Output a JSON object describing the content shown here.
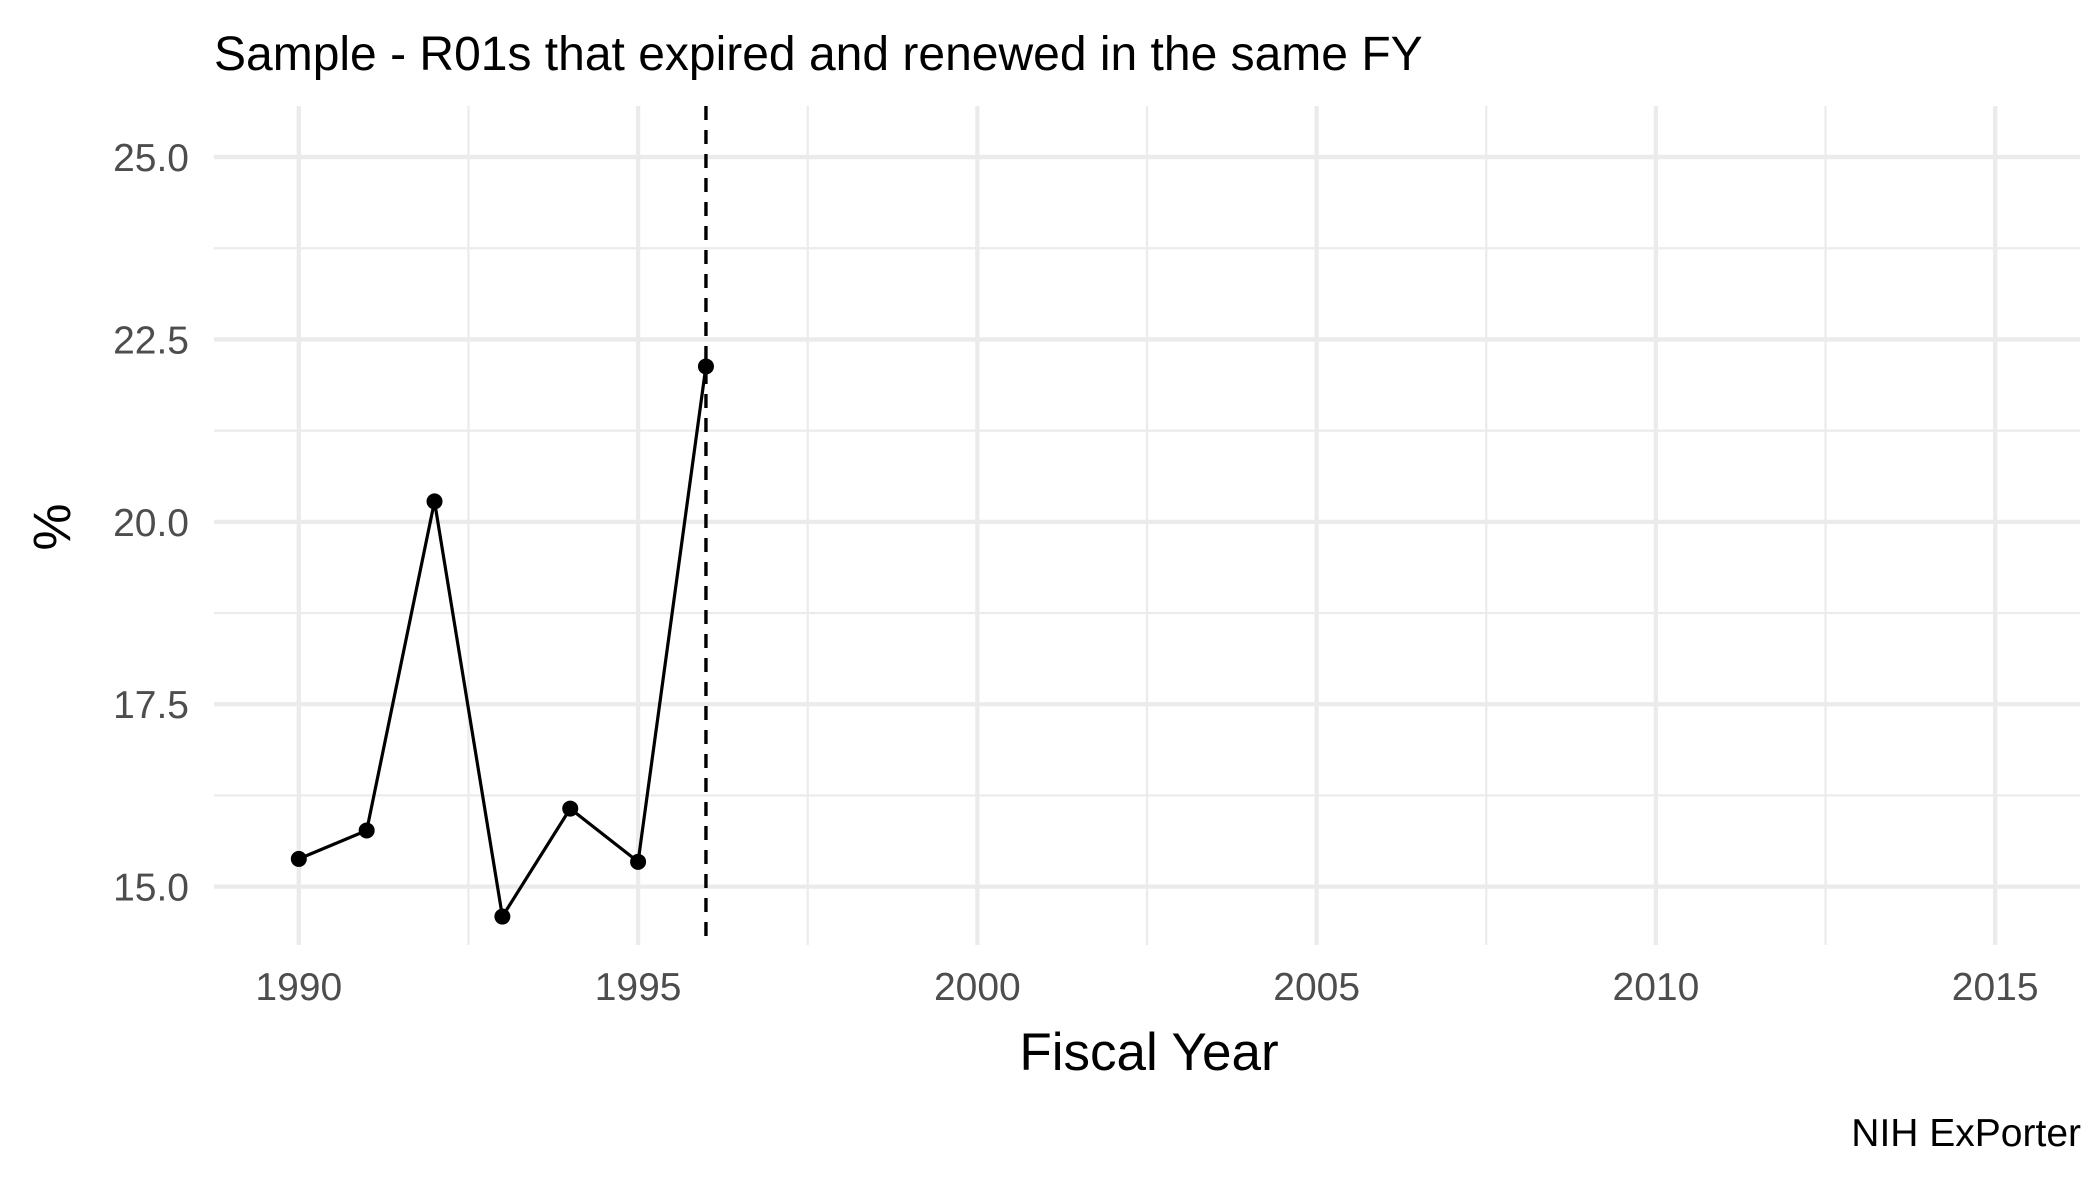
{
  "chart_data": {
    "type": "line",
    "title": "Sample - R01s that expired and renewed in the same FY",
    "xlabel": "Fiscal Year",
    "ylabel": "%",
    "caption": "NIH ExPorter",
    "xlim": [
      1988.75,
      2016.25
    ],
    "ylim": [
      14.2,
      25.7
    ],
    "x_ticks": [
      1990,
      1995,
      2000,
      2005,
      2010,
      2015
    ],
    "x_tick_labels": [
      "1990",
      "1995",
      "2000",
      "2005",
      "2010",
      "2015"
    ],
    "y_ticks": [
      15.0,
      17.5,
      20.0,
      22.5,
      25.0
    ],
    "y_tick_labels": [
      "15.0",
      "17.5",
      "20.0",
      "22.5",
      "25.0"
    ],
    "grid": true,
    "series": [
      {
        "x": [
          1990,
          1991,
          1992,
          1993,
          1994,
          1995,
          1996
        ],
        "y": [
          15.38,
          15.77,
          20.28,
          14.59,
          16.07,
          15.34,
          22.13
        ],
        "color": "#000000",
        "markers": true
      }
    ],
    "reference_lines": [
      {
        "orientation": "vertical",
        "x": 1996,
        "style": "dashed",
        "color": "#000000"
      }
    ]
  }
}
